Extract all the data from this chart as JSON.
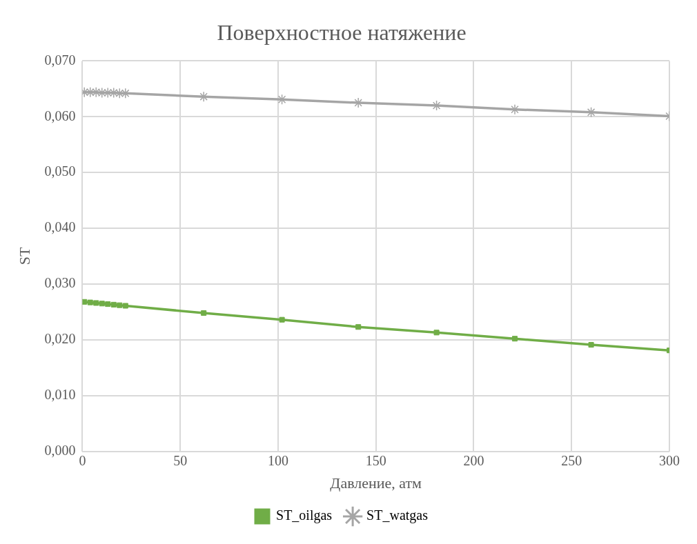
{
  "chart_data": {
    "type": "line",
    "title": "Поверхностное натяжение",
    "xlabel": "Давление, атм",
    "ylabel": "ST",
    "xlim": [
      0,
      300
    ],
    "xticks": [
      0,
      50,
      100,
      150,
      200,
      250,
      300
    ],
    "ylim": [
      0,
      0.07
    ],
    "yticks": [
      {
        "value": 0,
        "label": "0,000"
      },
      {
        "value": 0.01,
        "label": "0,010"
      },
      {
        "value": 0.02,
        "label": "0,020"
      },
      {
        "value": 0.03,
        "label": "0,030"
      },
      {
        "value": 0.04,
        "label": "0,040"
      },
      {
        "value": 0.05,
        "label": "0,050"
      },
      {
        "value": 0.06,
        "label": "0,060"
      },
      {
        "value": 0.07,
        "label": "0,070"
      }
    ],
    "grid": true,
    "legend": "bottom",
    "series": [
      {
        "name": "ST_oilgas",
        "color": "#70ad47",
        "marker": "square",
        "x": [
          1,
          4,
          7,
          10,
          13,
          16,
          19,
          22,
          62,
          102,
          141,
          181,
          221,
          260,
          300
        ],
        "values": [
          0.0268,
          0.0267,
          0.0266,
          0.0265,
          0.0264,
          0.0263,
          0.0262,
          0.0261,
          0.0248,
          0.0236,
          0.0223,
          0.0213,
          0.0202,
          0.0191,
          0.0181
        ]
      },
      {
        "name": "ST_watgas",
        "color": "#a5a5a5",
        "marker": "cross",
        "x": [
          1,
          4,
          7,
          10,
          13,
          16,
          19,
          22,
          62,
          102,
          141,
          181,
          221,
          260,
          300
        ],
        "values": [
          0.0644,
          0.0644,
          0.0644,
          0.0643,
          0.0643,
          0.0643,
          0.0642,
          0.0642,
          0.0636,
          0.0631,
          0.0625,
          0.062,
          0.0613,
          0.0608,
          0.0601
        ]
      }
    ]
  }
}
